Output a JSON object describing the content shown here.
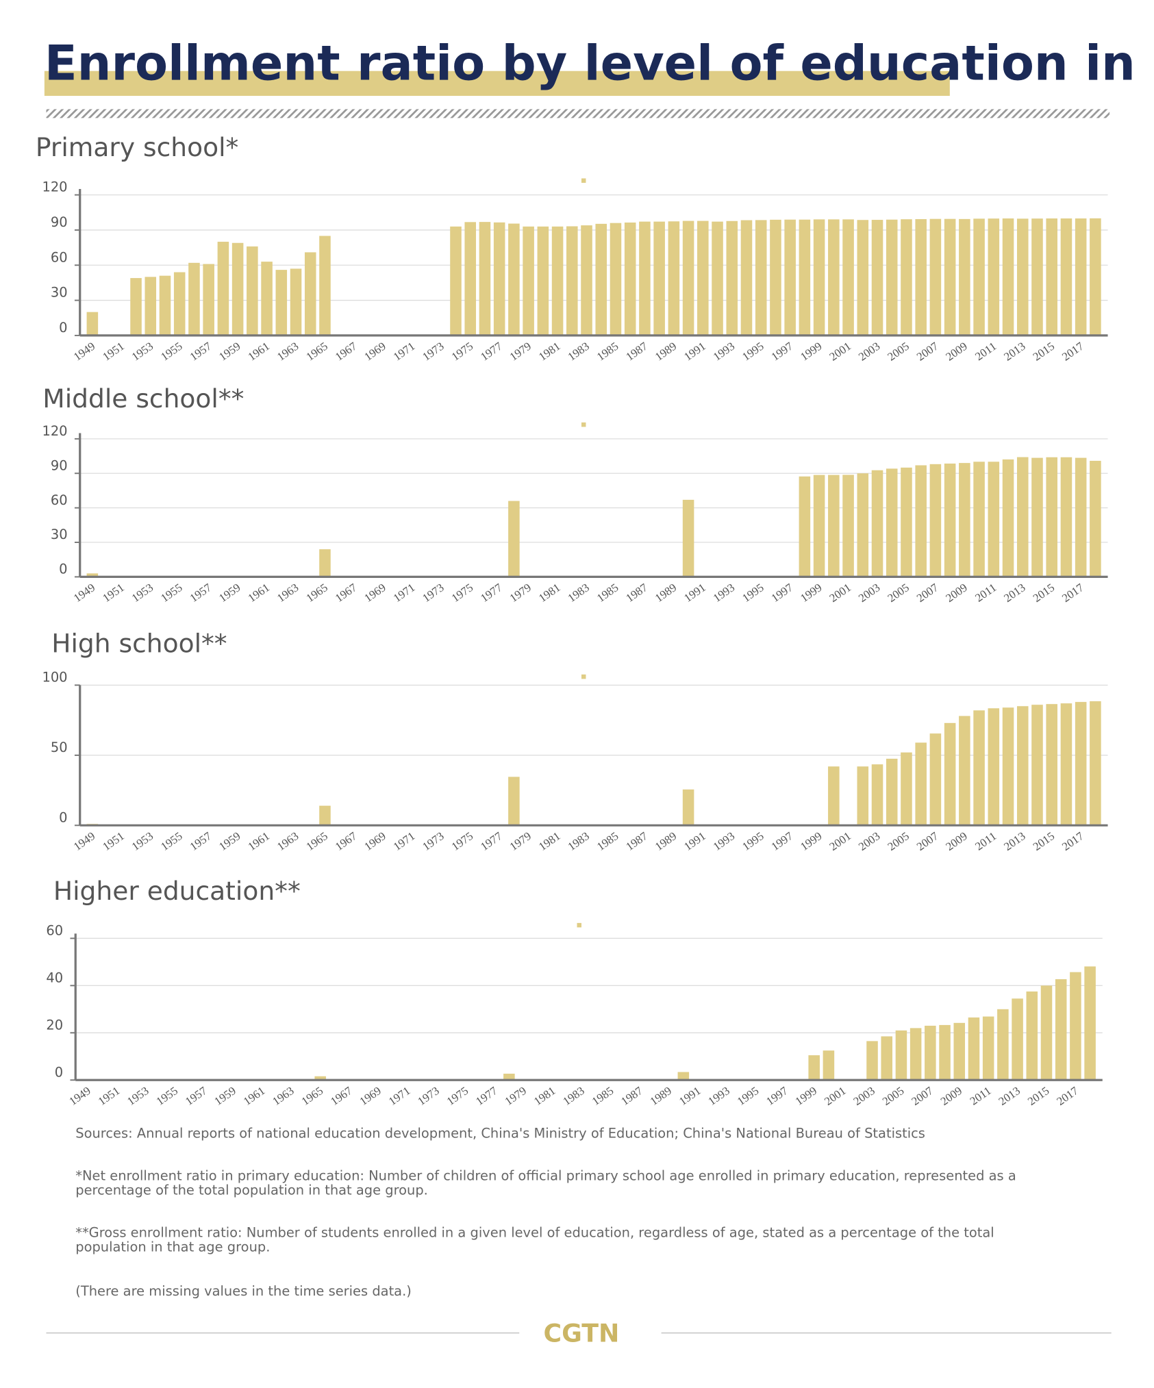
{
  "header": {
    "title": "Enrollment ratio by level of education in China",
    "logo": "CGTN"
  },
  "notes": [
    [
      "Sources: Annual reports of national education development, China's Ministry of Education; China's National Bureau of Statistics"
    ],
    [
      "*Net enrollment ratio in primary education: Number of children of official primary school age enrolled in primary education, represented as a",
      "percentage of the total population in that age group."
    ],
    [
      "**Gross enrollment ratio: Number of students enrolled in a given level of education, regardless of age, stated as a percentage of the total",
      "population in that age group."
    ],
    [
      "(There are missing values in the time series data.)"
    ]
  ],
  "chart_data": [
    {
      "type": "bar",
      "title": "Primary school*",
      "color": "#e0cd86",
      "grid": true,
      "ylim": [
        0,
        125
      ],
      "yticks": [
        0,
        30,
        60,
        90,
        120
      ],
      "categories": [
        "1949",
        null,
        "1951",
        null,
        "1953",
        null,
        "1955",
        null,
        "1957",
        null,
        "1959",
        null,
        "1961",
        null,
        "1963",
        null,
        "1965",
        null,
        "1967",
        null,
        "1969",
        null,
        "1971",
        null,
        "1973",
        null,
        "1975",
        null,
        "1977",
        null,
        "1979",
        null,
        "1981",
        null,
        "1983",
        null,
        "1985",
        null,
        "1987",
        null,
        "1989",
        null,
        "1991",
        null,
        "1993",
        null,
        "1995",
        null,
        "1997",
        null,
        "1999",
        null,
        "2001",
        null,
        "2003",
        null,
        "2005",
        null,
        "2007",
        null,
        "2009",
        null,
        "2011",
        null,
        "2013",
        null,
        "2015",
        null,
        "2017",
        null
      ],
      "values": [
        20,
        null,
        null,
        49,
        50,
        51,
        54,
        62,
        61,
        80,
        79,
        76,
        63,
        56,
        57,
        71,
        85,
        null,
        null,
        null,
        null,
        null,
        null,
        null,
        null,
        93,
        96.8,
        96.9,
        96.5,
        95.5,
        93,
        93,
        93,
        93.2,
        94,
        95.3,
        96,
        96.4,
        97.2,
        97.2,
        97.4,
        97.8,
        97.8,
        97.2,
        97.7,
        98.4,
        98.5,
        98.8,
        98.9,
        98.9,
        99.1,
        99.1,
        99.1,
        98.6,
        98.7,
        98.9,
        99.2,
        99.3,
        99.5,
        99.5,
        99.4,
        99.7,
        99.8,
        99.9,
        99.7,
        99.8,
        99.9,
        99.9,
        99.9,
        100
      ]
    },
    {
      "type": "bar",
      "title": "Middle school**",
      "color": "#e0cd86",
      "grid": true,
      "ylim": [
        0,
        125
      ],
      "yticks": [
        0,
        30,
        60,
        90,
        120
      ],
      "categories": [
        "1949",
        null,
        "1951",
        null,
        "1953",
        null,
        "1955",
        null,
        "1957",
        null,
        "1959",
        null,
        "1961",
        null,
        "1963",
        null,
        "1965",
        null,
        "1967",
        null,
        "1969",
        null,
        "1971",
        null,
        "1973",
        null,
        "1975",
        null,
        "1977",
        null,
        "1979",
        null,
        "1981",
        null,
        "1983",
        null,
        "1985",
        null,
        "1987",
        null,
        "1989",
        null,
        "1991",
        null,
        "1993",
        null,
        "1995",
        null,
        "1997",
        null,
        "1999",
        null,
        "2001",
        null,
        "2003",
        null,
        "2005",
        null,
        "2007",
        null,
        "2009",
        null,
        "2011",
        null,
        "2013",
        null,
        "2015",
        null,
        "2017",
        null
      ],
      "values": [
        3,
        null,
        null,
        null,
        null,
        null,
        null,
        null,
        null,
        null,
        null,
        null,
        null,
        null,
        null,
        null,
        24,
        null,
        null,
        null,
        null,
        null,
        null,
        null,
        null,
        null,
        null,
        null,
        null,
        66,
        null,
        null,
        null,
        null,
        null,
        null,
        null,
        null,
        null,
        null,
        null,
        67,
        null,
        null,
        null,
        null,
        null,
        null,
        null,
        87.3,
        88.6,
        88.6,
        88.7,
        90,
        92.7,
        94.1,
        95,
        97,
        98,
        98.5,
        99,
        100.1,
        100.1,
        102.1,
        104.1,
        103.5,
        104,
        104,
        103.5,
        100.9
      ]
    },
    {
      "type": "bar",
      "title": "High school**",
      "color": "#e0cd86",
      "grid": true,
      "ylim": [
        0,
        100
      ],
      "yticks": [
        0,
        50,
        100
      ],
      "categories": [
        "1949",
        null,
        "1951",
        null,
        "1953",
        null,
        "1955",
        null,
        "1957",
        null,
        "1959",
        null,
        "1961",
        null,
        "1963",
        null,
        "1965",
        null,
        "1967",
        null,
        "1969",
        null,
        "1971",
        null,
        "1973",
        null,
        "1975",
        null,
        "1977",
        null,
        "1979",
        null,
        "1981",
        null,
        "1983",
        null,
        "1985",
        null,
        "1987",
        null,
        "1989",
        null,
        "1991",
        null,
        "1993",
        null,
        "1995",
        null,
        "1997",
        null,
        "1999",
        null,
        "2001",
        null,
        "2003",
        null,
        "2005",
        null,
        "2007",
        null,
        "2009",
        null,
        "2011",
        null,
        "2013",
        null,
        "2015",
        null,
        "2017",
        null
      ],
      "values": [
        1,
        null,
        null,
        null,
        null,
        null,
        null,
        null,
        null,
        null,
        null,
        null,
        null,
        null,
        null,
        null,
        14,
        null,
        null,
        null,
        null,
        null,
        null,
        null,
        null,
        null,
        null,
        null,
        null,
        34.6,
        null,
        null,
        null,
        null,
        null,
        null,
        null,
        null,
        null,
        null,
        null,
        25.6,
        null,
        null,
        null,
        null,
        null,
        null,
        null,
        null,
        null,
        42,
        null,
        42,
        43.5,
        47.5,
        52,
        59,
        65.5,
        73,
        78,
        82,
        83.5,
        84,
        85,
        86,
        86.5,
        87,
        88,
        88.5
      ]
    },
    {
      "type": "bar",
      "title": "Higher education**",
      "color": "#e0cd86",
      "grid": true,
      "ylim": [
        0,
        62
      ],
      "yticks": [
        0,
        20,
        40,
        60
      ],
      "categories": [
        "1949",
        null,
        "1951",
        null,
        "1953",
        null,
        "1955",
        null,
        "1957",
        null,
        "1959",
        null,
        "1961",
        null,
        "1963",
        null,
        "1965",
        null,
        "1967",
        null,
        "1969",
        null,
        "1971",
        null,
        "1973",
        null,
        "1975",
        null,
        "1977",
        null,
        "1979",
        null,
        "1981",
        null,
        "1983",
        null,
        "1985",
        null,
        "1987",
        null,
        "1989",
        null,
        "1991",
        null,
        "1993",
        null,
        "1995",
        null,
        "1997",
        null,
        "1999",
        null,
        "2001",
        null,
        "2003",
        null,
        "2005",
        null,
        "2007",
        null,
        "2009",
        null,
        "2011",
        null,
        "2013",
        null,
        "2015",
        null,
        "2017",
        null
      ],
      "values": [
        0.3,
        null,
        null,
        null,
        null,
        null,
        null,
        null,
        null,
        null,
        null,
        null,
        null,
        null,
        null,
        null,
        1.6,
        null,
        null,
        null,
        null,
        null,
        null,
        null,
        null,
        null,
        null,
        null,
        null,
        2.7,
        null,
        null,
        null,
        null,
        null,
        null,
        null,
        null,
        null,
        null,
        null,
        3.4,
        null,
        null,
        null,
        null,
        null,
        null,
        null,
        null,
        10.5,
        12.5,
        null,
        null,
        16.5,
        18.5,
        21,
        22,
        23,
        23.3,
        24.2,
        26.5,
        26.9,
        30,
        34.5,
        37.5,
        40,
        42.7,
        45.7,
        48.1
      ]
    }
  ]
}
